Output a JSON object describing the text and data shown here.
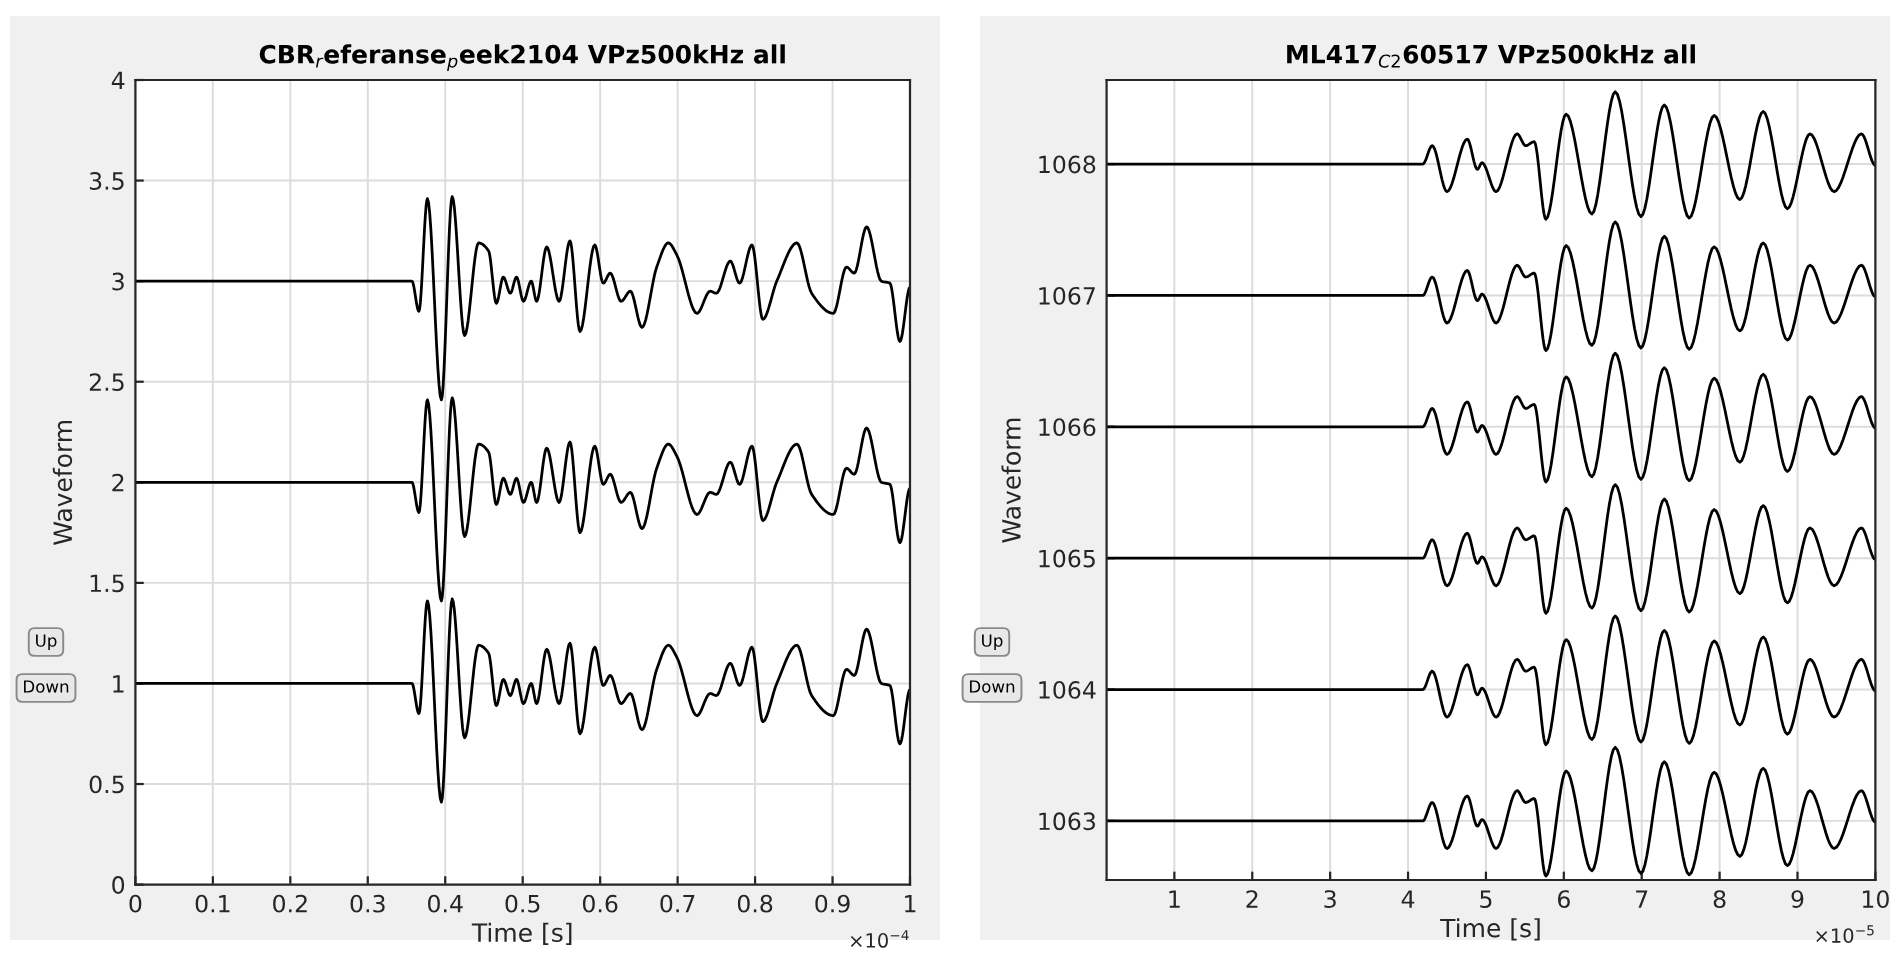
{
  "chart_data": [
    {
      "type": "line",
      "title": "CBR$_{r}$eferanse$_{p}$eek2104 VPz500kHz all",
      "xlabel": "Time [s]",
      "ylabel": "Waveform",
      "annotations": [
        "×10$^{−4}$",
        "Up",
        "Down"
      ],
      "x": [
        0,
        0.1,
        0.2,
        0.3,
        0.357,
        0.366,
        0.377,
        0.395,
        0.409,
        0.425,
        0.443,
        0.456,
        0.466,
        0.475,
        0.484,
        0.492,
        0.501,
        0.511,
        0.518,
        0.531,
        0.547,
        0.561,
        0.574,
        0.593,
        0.604,
        0.613,
        0.627,
        0.639,
        0.654,
        0.673,
        0.688,
        0.699,
        0.725,
        0.742,
        0.75,
        0.768,
        0.78,
        0.796,
        0.81,
        0.828,
        0.854,
        0.873,
        0.901,
        0.918,
        0.928,
        0.944,
        0.963,
        0.974,
        0.987,
        1
      ],
      "series": [
        {
          "color": "#000000",
          "values": [
            3,
            3,
            3,
            3,
            3,
            2.85,
            3.41,
            2.41,
            3.42,
            2.73,
            3.19,
            3.15,
            2.89,
            3.02,
            2.94,
            3.02,
            2.9,
            3.0,
            2.9,
            3.17,
            2.9,
            3.2,
            2.75,
            3.18,
            2.99,
            3.04,
            2.9,
            2.95,
            2.77,
            3.07,
            3.19,
            3.13,
            2.84,
            2.95,
            2.94,
            3.1,
            2.99,
            3.18,
            2.81,
            3.0,
            3.19,
            2.94,
            2.84,
            3.07,
            3.04,
            3.27,
            3.0,
            2.99,
            2.7,
            2.97
          ]
        },
        {
          "color": "#000000",
          "values": [
            2,
            2,
            2,
            2,
            2,
            1.85,
            2.41,
            1.41,
            2.42,
            1.73,
            2.19,
            2.15,
            1.89,
            2.02,
            1.94,
            2.02,
            1.9,
            2.0,
            1.9,
            2.17,
            1.9,
            2.2,
            1.75,
            2.18,
            1.99,
            2.04,
            1.9,
            1.95,
            1.77,
            2.07,
            2.19,
            2.13,
            1.84,
            1.95,
            1.94,
            2.1,
            1.99,
            2.18,
            1.81,
            2.0,
            2.19,
            1.94,
            1.84,
            2.07,
            2.04,
            2.27,
            2.0,
            1.99,
            1.7,
            1.97
          ]
        },
        {
          "color": "#000000",
          "values": [
            1,
            1,
            1,
            1,
            1,
            0.85,
            1.41,
            0.41,
            1.42,
            0.73,
            1.19,
            1.15,
            0.89,
            1.02,
            0.94,
            1.02,
            0.9,
            1.0,
            0.9,
            1.17,
            0.9,
            1.2,
            0.75,
            1.18,
            0.99,
            1.04,
            0.9,
            0.95,
            0.77,
            1.07,
            1.19,
            1.13,
            0.84,
            0.95,
            0.94,
            1.1,
            0.99,
            1.18,
            0.81,
            1.0,
            1.19,
            0.94,
            0.84,
            1.07,
            1.04,
            1.27,
            1.0,
            0.99,
            0.7,
            0.97
          ]
        }
      ],
      "xlim": [
        0,
        1
      ],
      "xticks": [
        0,
        0.1,
        0.2,
        0.3,
        0.4,
        0.5,
        0.6,
        0.7,
        0.8,
        0.9,
        1
      ],
      "ylim": [
        0,
        4
      ],
      "yticks": [
        0,
        0.5,
        1,
        1.5,
        2,
        2.5,
        3,
        3.5,
        4
      ],
      "grid": true
    },
    {
      "type": "line",
      "title": "ML417$_{C2}$60517 VPz500kHz all",
      "xlabel": "Time [s]",
      "ylabel": "Waveform",
      "annotations": [
        "×10$^{−5}$",
        "Up",
        "Down"
      ],
      "x": [
        0.13,
        1,
        2,
        3,
        4.19,
        4.31,
        4.5,
        4.76,
        4.89,
        4.95,
        5.13,
        5.4,
        5.51,
        5.62,
        5.77,
        6.03,
        6.36,
        6.66,
        6.99,
        7.29,
        7.61,
        7.93,
        8.26,
        8.56,
        8.87,
        9.16,
        9.47,
        9.82,
        10
      ],
      "series": [
        {
          "color": "#000000",
          "values": [
            1068,
            1068,
            1068,
            1068,
            1068,
            1068.14,
            1067.79,
            1068.19,
            1067.96,
            1068.01,
            1067.79,
            1068.23,
            1068.14,
            1068.17,
            1067.58,
            1068.38,
            1067.62,
            1068.55,
            1067.6,
            1068.45,
            1067.59,
            1068.37,
            1067.73,
            1068.4,
            1067.66,
            1068.23,
            1067.79,
            1068.23,
            1067.99
          ]
        },
        {
          "color": "#000000",
          "values": [
            1067,
            1067,
            1067,
            1067,
            1067,
            1067.14,
            1066.79,
            1067.19,
            1066.96,
            1067.01,
            1066.79,
            1067.23,
            1067.14,
            1067.17,
            1066.58,
            1067.38,
            1066.62,
            1067.56,
            1066.6,
            1067.45,
            1066.59,
            1067.37,
            1066.73,
            1067.4,
            1066.66,
            1067.23,
            1066.79,
            1067.23,
            1066.99
          ]
        },
        {
          "color": "#000000",
          "values": [
            1066,
            1066,
            1066,
            1066,
            1066,
            1066.14,
            1065.79,
            1066.19,
            1065.96,
            1066.01,
            1065.79,
            1066.23,
            1066.14,
            1066.17,
            1065.58,
            1066.38,
            1065.62,
            1066.56,
            1065.6,
            1066.45,
            1065.59,
            1066.37,
            1065.73,
            1066.4,
            1065.66,
            1066.23,
            1065.79,
            1066.23,
            1065.99
          ]
        },
        {
          "color": "#000000",
          "values": [
            1065,
            1065,
            1065,
            1065,
            1065,
            1065.14,
            1064.79,
            1065.19,
            1064.96,
            1065.01,
            1064.79,
            1065.23,
            1065.14,
            1065.17,
            1064.58,
            1065.38,
            1064.62,
            1065.56,
            1064.6,
            1065.45,
            1064.59,
            1065.37,
            1064.73,
            1065.4,
            1064.66,
            1065.23,
            1064.79,
            1065.23,
            1064.99
          ]
        },
        {
          "color": "#000000",
          "values": [
            1064,
            1064,
            1064,
            1064,
            1064,
            1064.14,
            1063.79,
            1064.19,
            1063.96,
            1064.01,
            1063.79,
            1064.23,
            1064.14,
            1064.17,
            1063.58,
            1064.38,
            1063.62,
            1064.56,
            1063.6,
            1064.45,
            1063.59,
            1064.37,
            1063.73,
            1064.4,
            1063.66,
            1064.23,
            1063.79,
            1064.23,
            1063.99
          ]
        },
        {
          "color": "#000000",
          "values": [
            1063,
            1063,
            1063,
            1063,
            1063,
            1063.14,
            1062.79,
            1063.19,
            1062.96,
            1063.01,
            1062.79,
            1063.23,
            1063.14,
            1063.17,
            1062.58,
            1063.38,
            1062.62,
            1063.56,
            1062.6,
            1063.45,
            1062.59,
            1063.37,
            1062.73,
            1063.4,
            1062.66,
            1063.23,
            1062.79,
            1063.23,
            1062.99
          ]
        }
      ],
      "xlim": [
        0.13,
        10
      ],
      "xticks": [
        1,
        2,
        3,
        4,
        5,
        6,
        7,
        8,
        9,
        10
      ],
      "ylim": [
        1062.55,
        1068.64
      ],
      "yticks": [
        1063,
        1064,
        1065,
        1066,
        1067,
        1068
      ],
      "grid": true
    }
  ]
}
